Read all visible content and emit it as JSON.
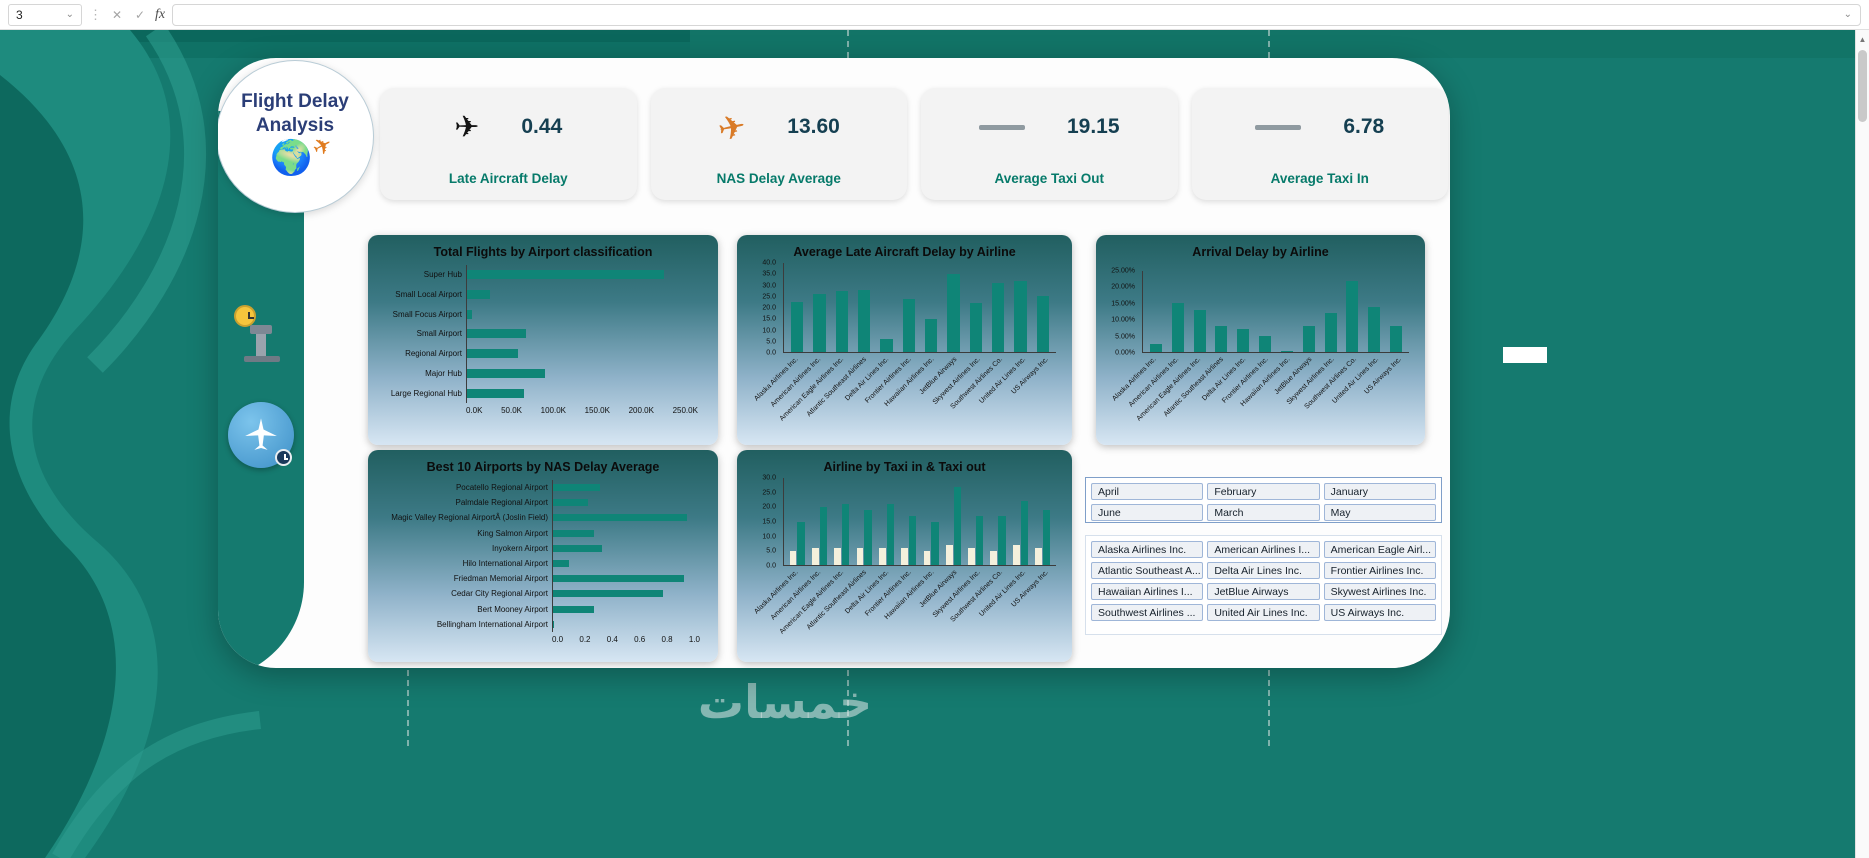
{
  "excel": {
    "name_box": "3",
    "formula_value": "",
    "icons": {
      "dropdown": "⌄",
      "dots": "⋮",
      "cancel": "✕",
      "check": "✓",
      "fx": "fx",
      "scroll_up": "▲",
      "plane": "✈",
      "globe": "🌍"
    }
  },
  "logo": {
    "title_line1": "Flight Delay",
    "title_line2": "Analysis"
  },
  "kpis": [
    {
      "icon": "plane-black-icon",
      "value": "0.44",
      "label": "Late Aircraft Delay"
    },
    {
      "icon": "plane-orange-icon",
      "value": "13.60",
      "label": "NAS Delay Average"
    },
    {
      "icon": "dash-icon",
      "value": "19.15",
      "label": "Average Taxi Out"
    },
    {
      "icon": "dash-icon",
      "value": "6.78",
      "label": "Average Taxi In"
    }
  ],
  "chart_data": [
    {
      "type": "bar",
      "orientation": "horizontal",
      "title": "Total Flights by Airport classification",
      "categories": [
        "Super Hub",
        "Small Local Airport",
        "Small Focus Airport",
        "Small Airport",
        "Regional Airport",
        "Major Hub",
        "Large Regional Hub"
      ],
      "values": [
        213,
        25,
        5,
        64,
        55,
        84,
        62
      ],
      "unit": "thousand flights",
      "xlim": [
        0,
        250
      ],
      "xticks": [
        "0.0K",
        "50.0K",
        "100.0K",
        "150.0K",
        "200.0K",
        "250.0K"
      ]
    },
    {
      "type": "bar",
      "orientation": "vertical",
      "title": "Average Late Aircraft Delay by Airline",
      "categories": [
        "Alaska Airlines Inc.",
        "American Airlines Inc.",
        "American Eagle Airlines Inc.",
        "Atlantic Southeast Airlines",
        "Delta Air Lines Inc.",
        "Frontier Airlines Inc.",
        "Hawaiian Airlines Inc.",
        "JetBlue Airways",
        "Skywest Airlines Inc.",
        "Southwest Airlines Co.",
        "United Air Lines Inc.",
        "US Airways Inc."
      ],
      "values": [
        22.5,
        26,
        27.5,
        28,
        6,
        24,
        15,
        35,
        22,
        31,
        32,
        25
      ],
      "ylim": [
        0,
        40
      ],
      "yticks": [
        "0.0",
        "5.0",
        "10.0",
        "15.0",
        "20.0",
        "25.0",
        "30.0",
        "35.0",
        "40.0"
      ]
    },
    {
      "type": "bar",
      "orientation": "vertical",
      "title": "Arrival Delay by Airline",
      "categories": [
        "Alaska Airlines Inc.",
        "American Airlines Inc.",
        "American Eagle Airlines Inc.",
        "Atlantic Southeast Airlines",
        "Delta Air Lines Inc.",
        "Frontier Airlines Inc.",
        "Hawaiian Airlines Inc.",
        "JetBlue Airways",
        "Skywest Airlines Inc.",
        "Southwest Airlines Co.",
        "United Air Lines Inc.",
        "US Airways Inc."
      ],
      "values": [
        2.5,
        15,
        13,
        8,
        7,
        5,
        0.4,
        8,
        12,
        22,
        14,
        8
      ],
      "unit": "percent",
      "ylim": [
        0,
        25
      ],
      "yticks": [
        "0.00%",
        "5.00%",
        "10.00%",
        "15.00%",
        "20.00%",
        "25.00%"
      ]
    },
    {
      "type": "bar",
      "orientation": "horizontal",
      "title": "Best 10 Airports by NAS Delay Average",
      "categories": [
        "Pocatello Regional Airport",
        "Palmdale Regional Airport",
        "Magic Valley Regional AirportÂ (Joslin Field)",
        "King Salmon Airport",
        "Inyokern Airport",
        "Hilo International Airport",
        "Friedman Memorial Airport",
        "Cedar City Regional Airport",
        "Bert Mooney Airport",
        "Bellingham International Airport"
      ],
      "values": [
        0.32,
        0.24,
        0.91,
        0.28,
        0.33,
        0.11,
        0.89,
        0.75,
        0.28,
        0.01
      ],
      "xlim": [
        0,
        1
      ],
      "xticks": [
        "0.0",
        "0.2",
        "0.4",
        "0.6",
        "0.8",
        "1.0"
      ]
    },
    {
      "type": "bar",
      "orientation": "vertical",
      "grouped": true,
      "title": "Airline by Taxi in & Taxi out",
      "categories": [
        "Alaska Airlines Inc.",
        "American Airlines Inc.",
        "American Eagle Airlines Inc.",
        "Atlantic Southeast Airlines",
        "Delta Air Lines Inc.",
        "Frontier Airlines Inc.",
        "Hawaiian Airlines Inc.",
        "JetBlue Airways",
        "Skywest Airlines Inc.",
        "Southwest Airlines Co.",
        "United Air Lines Inc.",
        "US Airways Inc."
      ],
      "series": [
        {
          "name": "Taxi In",
          "values": [
            5,
            6,
            6,
            6,
            6,
            6,
            5,
            7,
            6,
            5,
            7,
            6
          ]
        },
        {
          "name": "Taxi Out",
          "values": [
            15,
            20,
            21,
            19,
            21,
            17,
            15,
            27,
            17,
            17,
            22,
            19
          ]
        }
      ],
      "ylim": [
        0,
        30
      ],
      "yticks": [
        "0.0",
        "5.0",
        "10.0",
        "15.0",
        "20.0",
        "25.0",
        "30.0"
      ]
    }
  ],
  "slicers": {
    "months": [
      "April",
      "February",
      "January",
      "June",
      "March",
      "May"
    ],
    "airlines": [
      "Alaska Airlines Inc.",
      "American Airlines I...",
      "American Eagle Airl...",
      "Atlantic Southeast A...",
      "Delta Air Lines Inc.",
      "Frontier Airlines Inc.",
      "Hawaiian Airlines I...",
      "JetBlue Airways",
      "Skywest Airlines Inc.",
      "Southwest Airlines ...",
      "United Air Lines Inc.",
      "US Airways Inc."
    ]
  },
  "watermark": "خمسات",
  "colors": {
    "background": "#157a6f",
    "bar": "#0f8577",
    "bar_alt": "#f4f0dc",
    "accent_navy": "#2b3e77",
    "kpi_label": "#067a6a",
    "kpi_value": "#153f51",
    "slicer_border": "#7f9fc9"
  }
}
